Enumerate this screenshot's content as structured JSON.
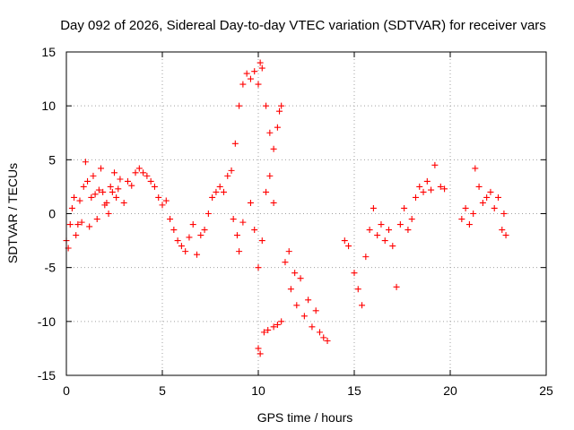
{
  "chart_data": {
    "type": "scatter",
    "title": "Day 092 of 2026, Sidereal Day-to-day VTEC variation (SDTVAR) for receiver vars",
    "xlabel": "GPS time / hours",
    "ylabel": "SDTVAR / TECUs",
    "xlim": [
      0,
      25
    ],
    "ylim": [
      -15,
      15
    ],
    "xticks": [
      "0",
      "5",
      "10",
      "15",
      "20",
      "25"
    ],
    "yticks": [
      "15",
      "10",
      "5",
      "0",
      "-5",
      "-10",
      "-15"
    ],
    "xtick_values": [
      0,
      5,
      10,
      15,
      20,
      25
    ],
    "ytick_values": [
      15,
      10,
      5,
      0,
      -5,
      -10,
      -15
    ],
    "grid": true,
    "marker": "+",
    "marker_color": "#ff0000",
    "series": [
      {
        "name": "SDTVAR",
        "points": [
          [
            0.0,
            -2.5
          ],
          [
            0.1,
            -3.2
          ],
          [
            0.2,
            -1.0
          ],
          [
            0.3,
            0.5
          ],
          [
            0.4,
            1.5
          ],
          [
            0.5,
            -2.0
          ],
          [
            0.6,
            -1.0
          ],
          [
            0.7,
            1.2
          ],
          [
            0.8,
            -0.8
          ],
          [
            0.9,
            2.5
          ],
          [
            1.0,
            4.8
          ],
          [
            1.1,
            3.0
          ],
          [
            1.2,
            -1.2
          ],
          [
            1.3,
            1.5
          ],
          [
            1.4,
            3.5
          ],
          [
            1.5,
            1.8
          ],
          [
            1.6,
            -0.5
          ],
          [
            1.7,
            2.2
          ],
          [
            1.8,
            4.2
          ],
          [
            1.9,
            2.0
          ],
          [
            2.0,
            0.8
          ],
          [
            2.1,
            1.0
          ],
          [
            2.2,
            0.0
          ],
          [
            2.3,
            2.5
          ],
          [
            2.4,
            2.0
          ],
          [
            2.5,
            3.8
          ],
          [
            2.6,
            1.5
          ],
          [
            2.7,
            2.3
          ],
          [
            2.8,
            3.2
          ],
          [
            3.0,
            1.0
          ],
          [
            3.2,
            3.0
          ],
          [
            3.4,
            2.6
          ],
          [
            3.6,
            3.8
          ],
          [
            3.8,
            4.2
          ],
          [
            4.0,
            3.8
          ],
          [
            4.2,
            3.5
          ],
          [
            4.4,
            3.0
          ],
          [
            4.6,
            2.5
          ],
          [
            4.8,
            1.5
          ],
          [
            5.0,
            0.8
          ],
          [
            5.2,
            1.2
          ],
          [
            5.4,
            -0.5
          ],
          [
            5.6,
            -1.5
          ],
          [
            5.8,
            -2.5
          ],
          [
            6.0,
            -3.0
          ],
          [
            6.2,
            -3.5
          ],
          [
            6.4,
            -2.2
          ],
          [
            6.6,
            -1.0
          ],
          [
            6.8,
            -3.8
          ],
          [
            7.0,
            -2.0
          ],
          [
            7.2,
            -1.5
          ],
          [
            7.4,
            0.0
          ],
          [
            7.6,
            1.5
          ],
          [
            7.8,
            2.0
          ],
          [
            8.0,
            2.5
          ],
          [
            8.2,
            2.0
          ],
          [
            8.4,
            3.5
          ],
          [
            8.6,
            4.0
          ],
          [
            8.8,
            6.5
          ],
          [
            9.0,
            10.0
          ],
          [
            9.2,
            12.0
          ],
          [
            9.4,
            13.0
          ],
          [
            9.6,
            12.5
          ],
          [
            9.8,
            13.2
          ],
          [
            10.0,
            12.0
          ],
          [
            10.1,
            14.0
          ],
          [
            10.2,
            13.5
          ],
          [
            10.4,
            10.0
          ],
          [
            10.6,
            7.5
          ],
          [
            10.8,
            6.0
          ],
          [
            11.0,
            8.0
          ],
          [
            11.1,
            9.5
          ],
          [
            11.2,
            10.0
          ],
          [
            8.7,
            -0.5
          ],
          [
            8.9,
            -2.0
          ],
          [
            9.0,
            -3.5
          ],
          [
            9.2,
            -0.8
          ],
          [
            9.6,
            1.0
          ],
          [
            9.8,
            -1.5
          ],
          [
            10.0,
            -5.0
          ],
          [
            10.2,
            -2.5
          ],
          [
            10.4,
            2.0
          ],
          [
            10.6,
            3.5
          ],
          [
            10.8,
            1.0
          ],
          [
            10.0,
            -12.5
          ],
          [
            10.1,
            -13.0
          ],
          [
            10.3,
            -11.0
          ],
          [
            10.5,
            -10.8
          ],
          [
            10.8,
            -10.5
          ],
          [
            11.0,
            -10.3
          ],
          [
            11.2,
            -10.0
          ],
          [
            11.4,
            -4.5
          ],
          [
            11.6,
            -3.5
          ],
          [
            11.7,
            -7.0
          ],
          [
            11.9,
            -5.5
          ],
          [
            12.0,
            -8.5
          ],
          [
            12.2,
            -6.0
          ],
          [
            12.4,
            -9.5
          ],
          [
            12.6,
            -8.0
          ],
          [
            12.8,
            -10.5
          ],
          [
            13.0,
            -9.0
          ],
          [
            13.2,
            -11.0
          ],
          [
            13.4,
            -11.5
          ],
          [
            13.6,
            -11.8
          ],
          [
            14.5,
            -2.5
          ],
          [
            14.7,
            -3.0
          ],
          [
            15.0,
            -5.5
          ],
          [
            15.2,
            -7.0
          ],
          [
            15.4,
            -8.5
          ],
          [
            15.6,
            -4.0
          ],
          [
            15.8,
            -1.5
          ],
          [
            16.0,
            0.5
          ],
          [
            16.2,
            -2.0
          ],
          [
            16.4,
            -1.0
          ],
          [
            16.6,
            -2.5
          ],
          [
            16.8,
            -1.5
          ],
          [
            17.0,
            -3.0
          ],
          [
            17.2,
            -6.8
          ],
          [
            17.4,
            -1.0
          ],
          [
            17.6,
            0.5
          ],
          [
            17.8,
            -1.5
          ],
          [
            18.0,
            -0.5
          ],
          [
            18.2,
            1.5
          ],
          [
            18.4,
            2.5
          ],
          [
            18.6,
            2.0
          ],
          [
            18.8,
            3.0
          ],
          [
            19.0,
            2.2
          ],
          [
            19.2,
            4.5
          ],
          [
            19.5,
            2.5
          ],
          [
            19.7,
            2.3
          ],
          [
            20.6,
            -0.5
          ],
          [
            20.8,
            0.5
          ],
          [
            21.0,
            -1.0
          ],
          [
            21.2,
            0.0
          ],
          [
            21.3,
            4.2
          ],
          [
            21.5,
            2.5
          ],
          [
            21.7,
            1.0
          ],
          [
            21.9,
            1.5
          ],
          [
            22.1,
            2.0
          ],
          [
            22.3,
            0.5
          ],
          [
            22.5,
            1.5
          ],
          [
            22.7,
            -1.5
          ],
          [
            22.8,
            0.0
          ],
          [
            22.9,
            -2.0
          ]
        ]
      }
    ]
  }
}
